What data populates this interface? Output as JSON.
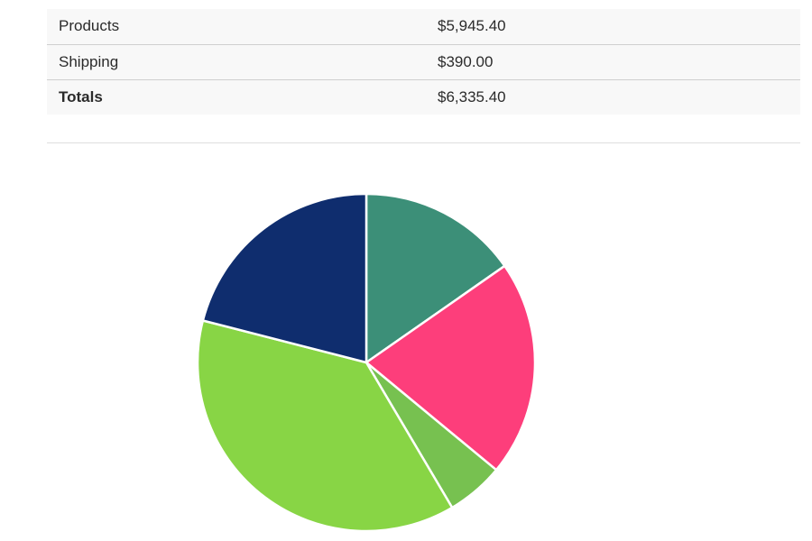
{
  "totals": {
    "rows": [
      {
        "label": "Products",
        "value": "$5,945.40"
      },
      {
        "label": "Shipping",
        "value": "$390.00"
      },
      {
        "label": "Totals",
        "value": "$6,335.40"
      }
    ]
  },
  "chart_data": {
    "type": "pie",
    "title": "",
    "series": [
      {
        "share": 0.153,
        "color": "#3c8f78"
      },
      {
        "share": 0.207,
        "color": "#fd3e7b"
      },
      {
        "share": 0.055,
        "color": "#77c150"
      },
      {
        "share": 0.375,
        "color": "#88d545"
      },
      {
        "share": 0.21,
        "color": "#0f2d6e"
      }
    ],
    "start_angle_deg": 0,
    "direction": "clockwise",
    "legend": "none"
  }
}
